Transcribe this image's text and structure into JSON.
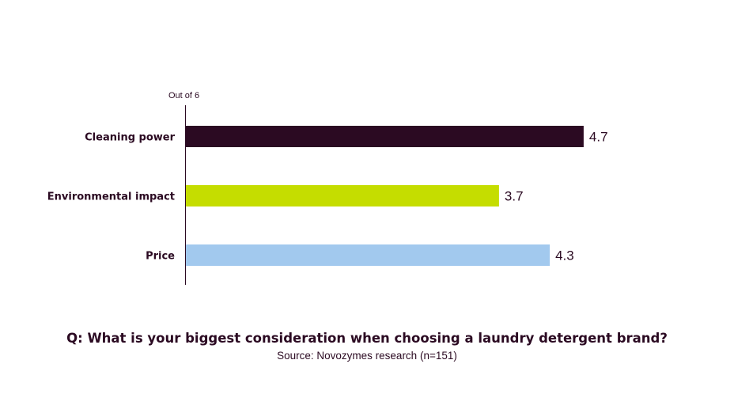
{
  "chart_data": {
    "type": "bar",
    "orientation": "horizontal",
    "unit_label": "Out of 6",
    "categories": [
      "Cleaning power",
      "Environmental impact",
      "Price"
    ],
    "values": [
      4.7,
      3.7,
      4.3
    ],
    "value_labels": [
      "4.7",
      "3.7",
      "4.3"
    ],
    "colors": [
      "#2b0a22",
      "#c5dd00",
      "#a2c9ee"
    ],
    "xlim": [
      0,
      6
    ],
    "grid": false,
    "legend": "none"
  },
  "caption": {
    "question": "Q: What is your biggest consideration when choosing a laundry detergent brand?",
    "source": "Source: Novozymes research (n=151)"
  }
}
